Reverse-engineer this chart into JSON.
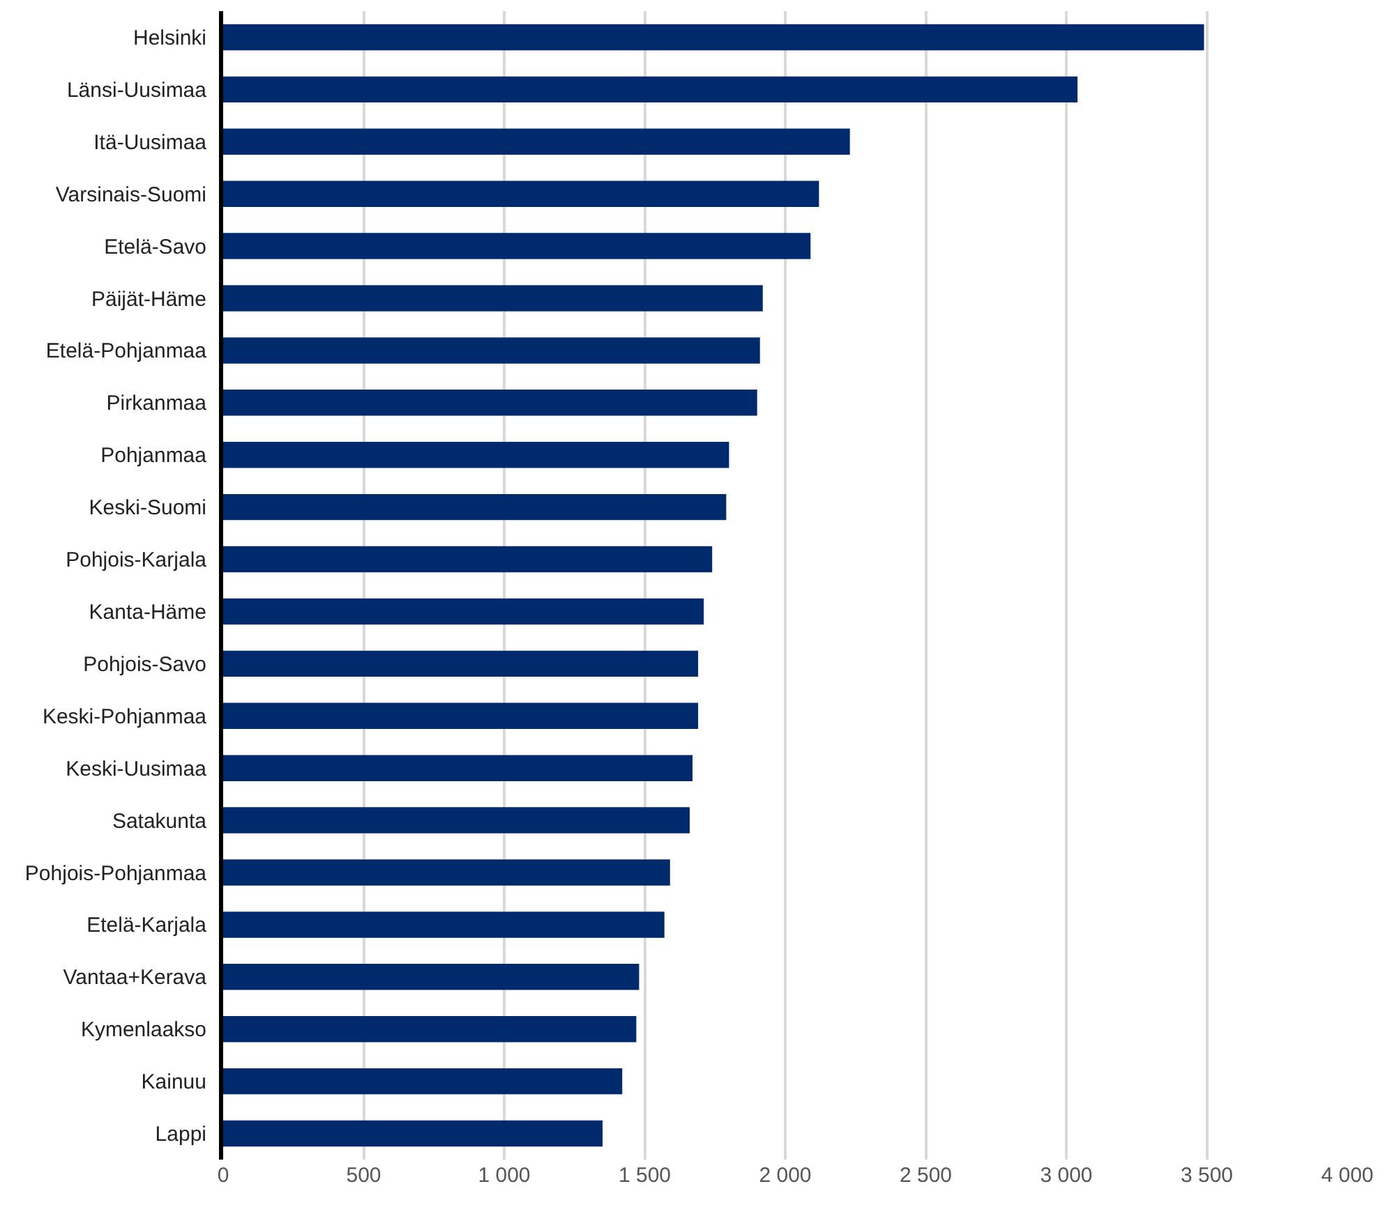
{
  "chart_data": {
    "type": "bar",
    "orientation": "horizontal",
    "categories": [
      "Helsinki",
      "Länsi-Uusimaa",
      "Itä-Uusimaa",
      "Varsinais-Suomi",
      "Etelä-Savo",
      "Päijät-Häme",
      "Etelä-Pohjanmaa",
      "Pirkanmaa",
      "Pohjanmaa",
      "Keski-Suomi",
      "Pohjois-Karjala",
      "Kanta-Häme",
      "Pohjois-Savo",
      "Keski-Pohjanmaa",
      "Keski-Uusimaa",
      "Satakunta",
      "Pohjois-Pohjanmaa",
      "Etelä-Karjala",
      "Vantaa+Kerava",
      "Kymenlaakso",
      "Kainuu",
      "Lappi"
    ],
    "values": [
      3490,
      3040,
      2230,
      2120,
      2090,
      1920,
      1910,
      1900,
      1800,
      1790,
      1740,
      1710,
      1690,
      1690,
      1670,
      1660,
      1590,
      1570,
      1480,
      1470,
      1420,
      1350
    ],
    "color": "#002a6c",
    "xlim": [
      0,
      4000
    ],
    "xticks": [
      0,
      {
        "value": 500,
        "label": "500"
      },
      {
        "value": 1000,
        "label": "1 000"
      },
      {
        "value": 1500,
        "label": "1 500"
      },
      {
        "value": 2000,
        "label": "2 000"
      },
      {
        "value": 2500,
        "label": "2 500"
      },
      {
        "value": 3000,
        "label": "3 000"
      },
      {
        "value": 3500,
        "label": "3 500"
      },
      {
        "value": 4000,
        "label": "4 000"
      }
    ],
    "grid": "x"
  }
}
